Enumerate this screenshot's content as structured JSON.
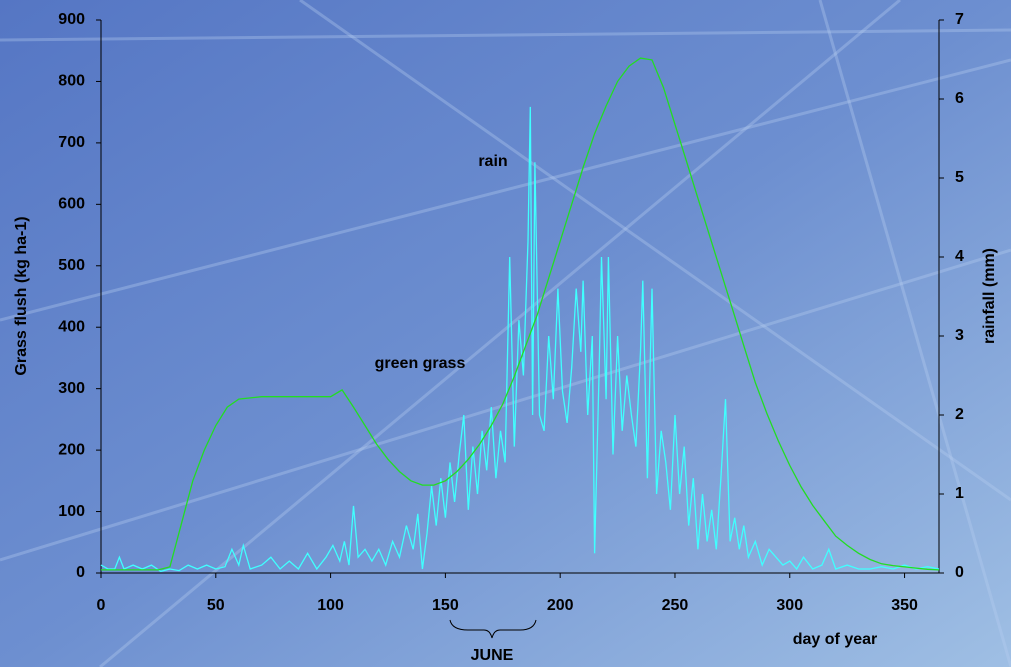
{
  "chart_data": {
    "type": "line",
    "ylabel": "Grass flush (kg ha-1)",
    "y2label": "rainfall (mm)",
    "xlabel": "day of year",
    "annotations": [
      "rain",
      "green grass",
      "JUNE"
    ],
    "xlim": [
      0,
      365
    ],
    "xticks": [
      0,
      50,
      100,
      150,
      200,
      250,
      300,
      350
    ],
    "ylim": [
      0,
      900
    ],
    "yticks": [
      0,
      100,
      200,
      300,
      400,
      500,
      600,
      700,
      800,
      900
    ],
    "y2lim": [
      0,
      7
    ],
    "y2ticks": [
      0,
      1,
      2,
      3,
      4,
      5,
      6,
      7
    ],
    "series": [
      {
        "name": "green grass",
        "color": "#22dd22",
        "x": [
          0,
          25,
          30,
          35,
          40,
          45,
          50,
          55,
          60,
          70,
          80,
          90,
          100,
          105,
          110,
          115,
          120,
          125,
          130,
          135,
          140,
          145,
          150,
          155,
          160,
          165,
          170,
          175,
          180,
          185,
          190,
          195,
          200,
          205,
          210,
          215,
          220,
          225,
          230,
          235,
          240,
          245,
          250,
          255,
          260,
          265,
          270,
          275,
          280,
          285,
          290,
          295,
          300,
          305,
          310,
          315,
          320,
          325,
          330,
          335,
          340,
          345,
          350,
          355,
          360,
          365
        ],
        "values": [
          5,
          5,
          10,
          80,
          150,
          200,
          240,
          270,
          283,
          287,
          287,
          287,
          287,
          298,
          270,
          240,
          210,
          185,
          165,
          150,
          143,
          143,
          150,
          165,
          185,
          210,
          240,
          275,
          320,
          370,
          420,
          480,
          540,
          600,
          660,
          715,
          760,
          800,
          825,
          838,
          835,
          790,
          730,
          670,
          610,
          550,
          490,
          430,
          370,
          310,
          260,
          215,
          175,
          140,
          110,
          85,
          60,
          45,
          32,
          22,
          15,
          12,
          10,
          8,
          6,
          5
        ]
      },
      {
        "name": "rain",
        "color": "#40ffff",
        "axis": "y2",
        "x": [
          0,
          3,
          6,
          8,
          10,
          14,
          18,
          22,
          26,
          30,
          34,
          38,
          42,
          46,
          50,
          54,
          57,
          60,
          62,
          65,
          70,
          74,
          78,
          82,
          86,
          90,
          94,
          98,
          101,
          104,
          106,
          108,
          110,
          112,
          115,
          118,
          121,
          124,
          127,
          130,
          133,
          136,
          138,
          140,
          142,
          144,
          146,
          148,
          150,
          152,
          154,
          156,
          158,
          160,
          162,
          164,
          166,
          168,
          170,
          172,
          174,
          176,
          178,
          180,
          182,
          184,
          186,
          187,
          188,
          189,
          191,
          193,
          195,
          197,
          199,
          201,
          203,
          205,
          207,
          209,
          210,
          212,
          214,
          215,
          217,
          218,
          220,
          221,
          223,
          225,
          227,
          229,
          231,
          233,
          235,
          236,
          238,
          240,
          242,
          244,
          246,
          248,
          250,
          252,
          254,
          256,
          258,
          260,
          262,
          264,
          266,
          268,
          270,
          272,
          274,
          276,
          278,
          280,
          282,
          285,
          288,
          291,
          294,
          297,
          300,
          303,
          306,
          310,
          314,
          317,
          320,
          325,
          330,
          335,
          340,
          345,
          350,
          355,
          360,
          365
        ],
        "values": [
          0.1,
          0.05,
          0.05,
          0.2,
          0.05,
          0.1,
          0.05,
          0.1,
          0.02,
          0.05,
          0.03,
          0.1,
          0.05,
          0.1,
          0.05,
          0.08,
          0.3,
          0.1,
          0.35,
          0.05,
          0.1,
          0.2,
          0.05,
          0.15,
          0.05,
          0.25,
          0.05,
          0.2,
          0.35,
          0.15,
          0.4,
          0.1,
          0.85,
          0.2,
          0.3,
          0.15,
          0.3,
          0.1,
          0.4,
          0.2,
          0.6,
          0.3,
          0.75,
          0.05,
          0.5,
          1.1,
          0.6,
          1.2,
          0.7,
          1.4,
          0.9,
          1.5,
          2.0,
          0.8,
          1.6,
          1.0,
          1.8,
          1.3,
          2.1,
          1.2,
          1.8,
          1.4,
          4.0,
          1.6,
          3.2,
          2.5,
          4.2,
          5.9,
          2.0,
          5.2,
          2.0,
          1.8,
          3.0,
          2.2,
          3.6,
          2.3,
          1.9,
          2.6,
          3.6,
          2.8,
          3.7,
          2.0,
          3.0,
          0.25,
          2.6,
          4.0,
          2.2,
          4.0,
          1.5,
          3.0,
          1.8,
          2.5,
          2.0,
          1.6,
          2.8,
          3.7,
          1.2,
          3.6,
          1.0,
          1.8,
          1.4,
          0.8,
          2.0,
          1.0,
          1.6,
          0.6,
          1.2,
          0.3,
          1.0,
          0.4,
          0.8,
          0.3,
          1.2,
          2.2,
          0.4,
          0.7,
          0.3,
          0.6,
          0.2,
          0.4,
          0.1,
          0.3,
          0.2,
          0.1,
          0.15,
          0.05,
          0.2,
          0.05,
          0.1,
          0.3,
          0.05,
          0.1,
          0.05,
          0.05,
          0.08,
          0.05,
          0.1,
          0.05,
          0.08,
          0.05
        ]
      }
    ]
  }
}
